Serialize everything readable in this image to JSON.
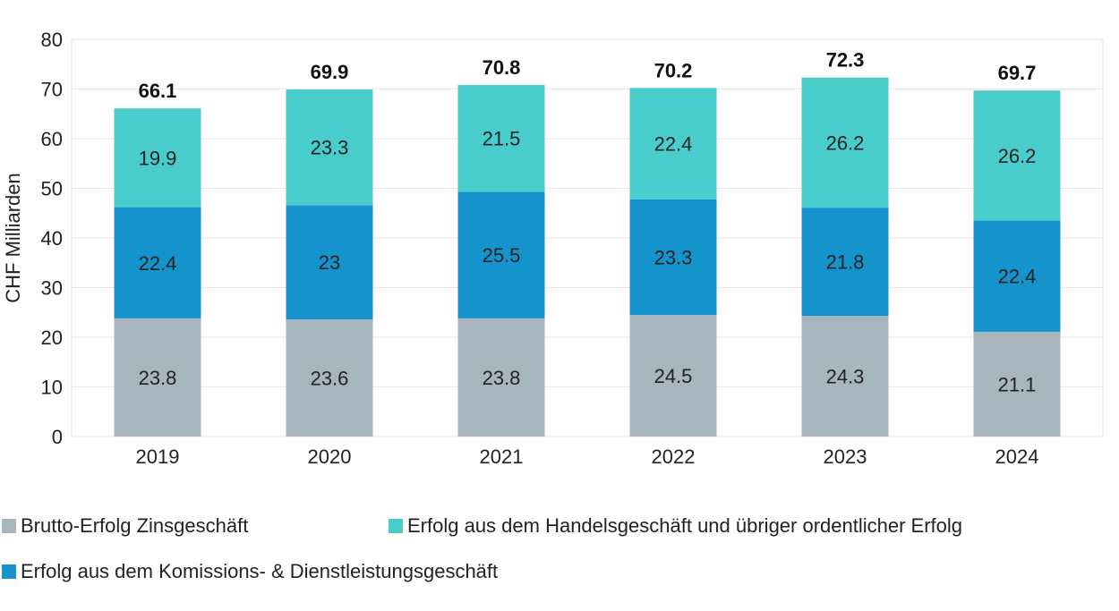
{
  "chart_data": {
    "type": "bar",
    "stacked": true,
    "title": "",
    "xlabel": "",
    "ylabel": "CHF Milliarden",
    "ylim": [
      0,
      80
    ],
    "yticks": [
      0,
      10,
      20,
      30,
      40,
      50,
      60,
      70,
      80
    ],
    "grid": true,
    "legend_position": "bottom",
    "categories": [
      "2019",
      "2020",
      "2021",
      "2022",
      "2023",
      "2024"
    ],
    "series": [
      {
        "name": "Brutto-Erfolg Zinsgeschäft",
        "color": "#a7b5bf",
        "values": [
          23.8,
          23.6,
          23.8,
          24.5,
          24.3,
          21.1
        ]
      },
      {
        "name": "Erfolg aus dem Komissions- & Dienstleistungsgeschäft",
        "color": "#1593cd",
        "values": [
          22.4,
          23,
          25.5,
          23.3,
          21.8,
          22.4
        ]
      },
      {
        "name": "Erfolg aus dem Handelsgeschäft und übriger ordentlicher Erfolg",
        "color": "#48cdcc",
        "values": [
          19.9,
          23.3,
          21.5,
          22.4,
          26.2,
          26.2
        ]
      }
    ],
    "totals": [
      66.1,
      69.9,
      70.8,
      70.2,
      72.3,
      69.7
    ]
  }
}
